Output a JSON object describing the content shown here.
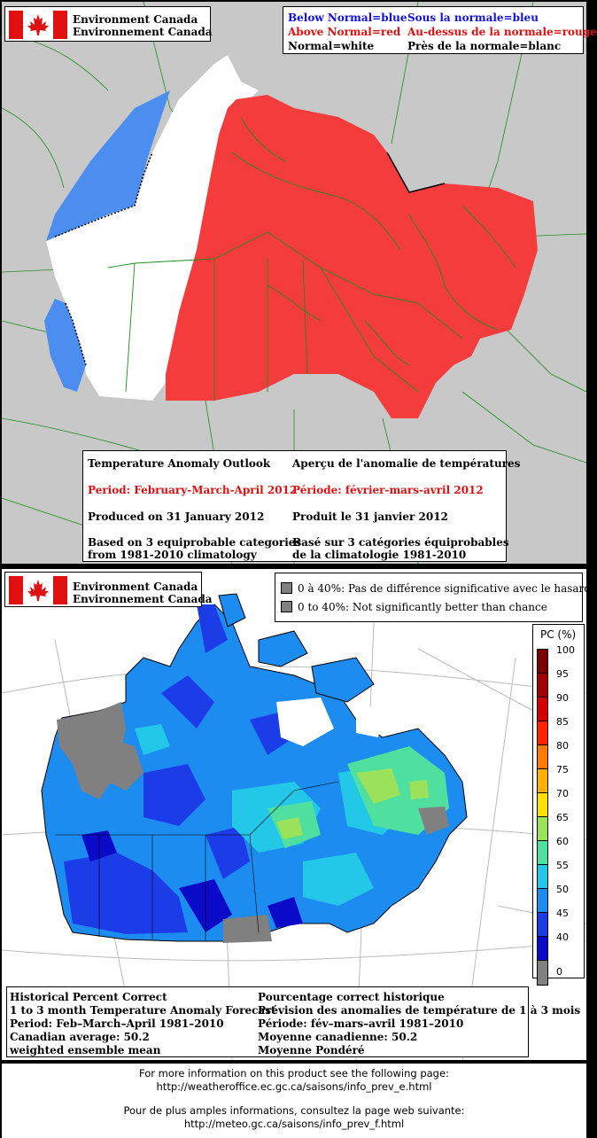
{
  "panel_top": {
    "logo": {
      "line1": "Environment Canada",
      "line2": "Environnement Canada"
    },
    "legend": {
      "below_en": "Below Normal=blue",
      "below_fr": "Sous la normale=bleu",
      "above_en": "Above Normal=red",
      "above_fr": "Au-dessus de la normale=rouge",
      "normal_en": "Normal=white",
      "normal_fr": "Près de la normale=blanc"
    },
    "colors": {
      "below": "#4b8ef0",
      "above": "#f53c3c",
      "normal": "#ffffff",
      "background": "#c8c8c8",
      "lines": "#1e8c1e"
    },
    "info": {
      "title_en": "Temperature Anomaly Outlook",
      "title_fr": "Aperçu de l'anomalie de températures",
      "period_en": "Period: February-March-April 2012",
      "period_fr": "Période: février-mars-avril 2012",
      "produced_en": "Produced on 31 January 2012",
      "produced_fr": "Produit le 31 janvier 2012",
      "based1_en": "Based on 3 equiprobable categories",
      "based2_en": "from 1981-2010 climatology",
      "based1_fr": "Basé sur 3 catégories équiprobables",
      "based2_fr": "de la climatologie 1981-2010"
    }
  },
  "panel_bottom": {
    "logo": {
      "line1": "Environment Canada",
      "line2": "Environnement Canada"
    },
    "significance": {
      "fr": "0 à 40%: Pas de différence significative avec le hasard",
      "en": "0 to 40%: Not significantly better than chance",
      "color": "#808080"
    },
    "scale": {
      "title": "PC (%)",
      "labels": [
        "100",
        "95",
        "90",
        "85",
        "80",
        "75",
        "70",
        "65",
        "60",
        "55",
        "50",
        "45",
        "40",
        "0"
      ],
      "colors": [
        "#7a0000",
        "#a50000",
        "#d40000",
        "#ff2400",
        "#ff7a00",
        "#ffb000",
        "#ffe000",
        "#9be25a",
        "#4fe0a0",
        "#23c8e8",
        "#1c8cf0",
        "#1c3ce8",
        "#0a0ac8",
        "#808080"
      ]
    },
    "info": {
      "l1_en": "Historical Percent Correct",
      "l2_en": "1 to 3 month Temperature Anomaly Forecast",
      "l3_en": "Period: Feb–March–April 1981–2010",
      "l4_en": "Canadian average: 50.2",
      "l5_en": "weighted ensemble mean",
      "l1_fr": "Pourcentage correct historique",
      "l2_fr": "Prévision des anomalies de température de 1 à 3 mois",
      "l3_fr": "Période: fév–mars–avril 1981–2010",
      "l4_fr": "Moyenne canadienne: 50.2",
      "l5_fr": "Moyenne Pondéré"
    }
  },
  "footer": {
    "en_text": "For more information on this product see the following page:",
    "en_url": "http://weatheroffice.ec.gc.ca/saisons/info_prev_e.html",
    "fr_text": "Pour de plus amples informations, consultez la page web suivante:",
    "fr_url": "http://meteo.gc.ca/saisons/info_prev_f.html"
  }
}
